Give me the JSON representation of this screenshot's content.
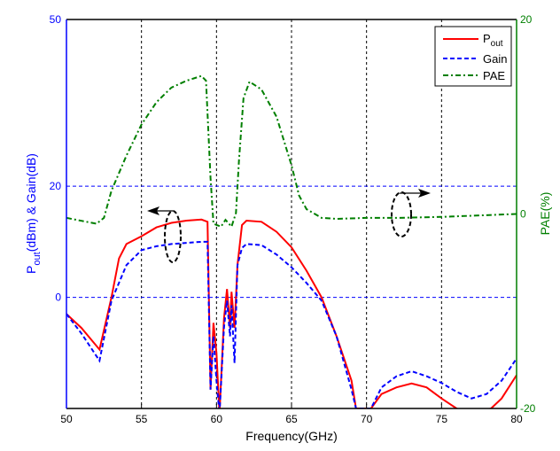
{
  "chart_data": {
    "type": "line",
    "title": "",
    "xlabel": "Frequency(GHz)",
    "ylabel_left": {
      "main": "P",
      "sub": "out",
      "rest": "(dBm) & Gain(dB)"
    },
    "ylabel_right": "PAE(%)",
    "xlim": [
      50,
      80
    ],
    "ylim_left": [
      -20,
      50
    ],
    "ylim_right": [
      -20,
      20
    ],
    "xticks": [
      "50",
      "55",
      "60",
      "65",
      "70",
      "75",
      "80"
    ],
    "yticks_left": [
      "50",
      "20",
      "0"
    ],
    "yticks_right": [
      "20",
      "0",
      "-20"
    ],
    "grid": true,
    "legend_placement": "top-right",
    "colors": {
      "pout": "#ff0000",
      "gain": "#0000ff",
      "pae": "#007f00",
      "left_axis": "#0000ff",
      "right_axis": "#007f00"
    },
    "series": [
      {
        "name": "P",
        "name_sub": "out",
        "axis": "left",
        "style": "solid",
        "x": [
          50,
          51,
          52.2,
          53,
          53.5,
          54,
          55,
          56,
          57,
          58,
          59,
          59.4,
          59.6,
          59.8,
          60,
          60.2,
          60.5,
          60.7,
          60.9,
          61.0,
          61.2,
          61.4,
          61.7,
          62,
          63,
          64,
          65,
          66,
          67,
          68,
          69,
          69.3,
          70.3,
          71,
          72,
          73,
          74,
          75,
          76,
          77,
          78.3,
          79,
          80
        ],
        "y": [
          -3,
          -5.5,
          -9.4,
          0,
          7,
          9.6,
          11,
          12.6,
          13.4,
          13.8,
          14,
          13.6,
          -16.6,
          -4.6,
          -10,
          -21,
          -3.8,
          1.5,
          -5.5,
          1,
          -5.5,
          5.8,
          13,
          13.8,
          13.6,
          11.8,
          9,
          4.8,
          0,
          -7,
          -15,
          -20,
          -20,
          -17.4,
          -16.2,
          -15.5,
          -16.2,
          -18.2,
          -20,
          -21,
          -20,
          -18.2,
          -14
        ]
      },
      {
        "name": "Gain",
        "axis": "left",
        "style": "dashed",
        "x": [
          50,
          51,
          52.2,
          53,
          54,
          55,
          56,
          57,
          58,
          59,
          59.4,
          59.6,
          59.8,
          60,
          60.2,
          60.5,
          60.7,
          60.9,
          61.0,
          61.2,
          61.4,
          61.7,
          62,
          63,
          64,
          65,
          66,
          67,
          68,
          69,
          69.3,
          70.3,
          71,
          72,
          73,
          74,
          75,
          76,
          77,
          78,
          79,
          80
        ],
        "y": [
          -3,
          -6.5,
          -11.4,
          -0.6,
          5.8,
          8.5,
          9.2,
          9.6,
          9.8,
          10,
          10,
          -16.6,
          -7,
          -15,
          -21,
          -5.4,
          -0.6,
          -7,
          -1.4,
          -11.8,
          5.8,
          8.9,
          9.6,
          9.4,
          7.7,
          5.4,
          2.6,
          -0.6,
          -7,
          -16.6,
          -20,
          -20,
          -16.2,
          -14.2,
          -13.3,
          -14.2,
          -15.4,
          -17,
          -18.2,
          -17.4,
          -15,
          -11
        ]
      },
      {
        "name": "PAE",
        "axis": "right",
        "style": "dashdot",
        "x": [
          50,
          51,
          52,
          52.5,
          53,
          54,
          55,
          56,
          57,
          58,
          59,
          59.3,
          59.6,
          59.8,
          60.3,
          60.6,
          61,
          61.3,
          61.5,
          61.8,
          62.2,
          63,
          64,
          65,
          65.5,
          66,
          67,
          68,
          70,
          72,
          75,
          80
        ],
        "y": [
          -0.4,
          -0.7,
          -1,
          -0.4,
          2.4,
          6,
          9.2,
          11.5,
          13,
          13.7,
          14.2,
          13.7,
          3.7,
          -1,
          -1.3,
          -0.6,
          -1.3,
          0.1,
          5.5,
          11.9,
          13.6,
          12.8,
          10,
          5,
          1.9,
          0.5,
          -0.4,
          -0.5,
          -0.4,
          -0.4,
          -0.3,
          0
        ]
      }
    ]
  }
}
